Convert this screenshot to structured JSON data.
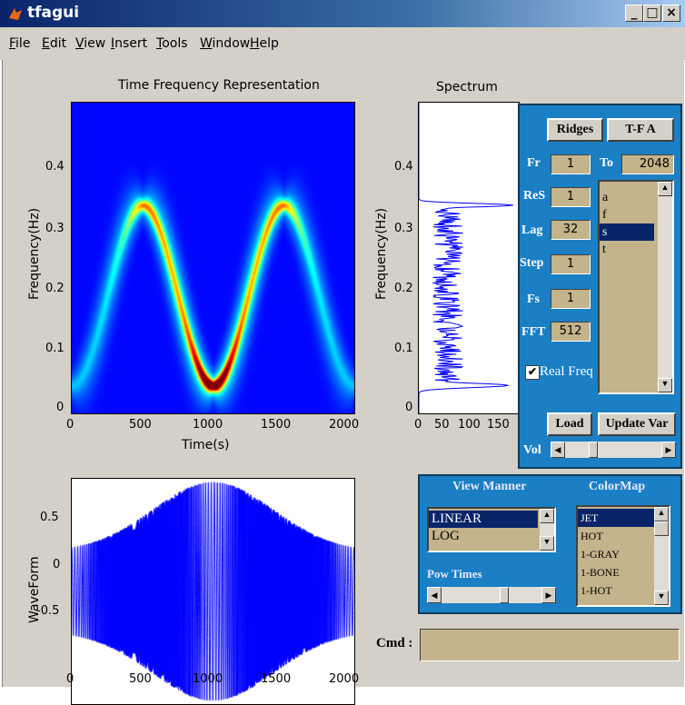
{
  "window": {
    "title": "tfagui",
    "min": "_",
    "max": "□",
    "close": "×"
  },
  "menu": [
    "File",
    "Edit",
    "View",
    "Insert",
    "Tools",
    "Window",
    "Help"
  ],
  "tfr": {
    "title": "Time Frequency Representation",
    "xlabel": "Time(s)",
    "ylabel": "Frequency(Hz)",
    "xticks": [
      "0",
      "500",
      "1000",
      "1500",
      "2000"
    ],
    "yticks": [
      "0",
      "0.1",
      "0.2",
      "0.3",
      "0.4"
    ]
  },
  "spectrum": {
    "title": "Spectrum",
    "ylabel": "Frequency(Hz)",
    "xticks": [
      "0",
      "50",
      "100",
      "150"
    ],
    "yticks": [
      "0",
      "0.1",
      "0.2",
      "0.3",
      "0.4"
    ]
  },
  "waveform": {
    "ylabel": "WaveForm",
    "xticks": [
      "0",
      "500",
      "1000",
      "1500",
      "2000"
    ],
    "yticks": [
      "0.5",
      "0",
      "-0.5"
    ]
  },
  "controls": {
    "ridges": "Ridges",
    "tfa": "T-F A",
    "fr_label": "Fr",
    "fr": "1",
    "to_label": "To",
    "to": "2048",
    "res_label": "ReS",
    "res": "1",
    "lag_label": "Lag",
    "lag": "32",
    "step_label": "Step",
    "step": "1",
    "fs_label": "Fs",
    "fs": "1",
    "fft_label": "FFT",
    "fft": "512",
    "vars": [
      "a",
      "f",
      "s",
      "t"
    ],
    "selected_var": "s",
    "realfreq": "Real Freq",
    "load": "Load",
    "update": "Update Var",
    "vol": "Vol"
  },
  "view": {
    "header": "View Manner",
    "options": [
      "LINEAR",
      "LOG"
    ],
    "selected": "LINEAR",
    "pow": "Pow Times",
    "cmap_header": "ColorMap",
    "cmaps": [
      "JET",
      "HOT",
      "1-GRAY",
      "1-BONE",
      "1-HOT"
    ],
    "cmap_selected": "JET"
  },
  "cmd": {
    "label": "Cmd :",
    "value": ""
  },
  "chart_data": [
    {
      "type": "heatmap",
      "title": "Time Frequency Representation",
      "xlabel": "Time(s)",
      "ylabel": "Frequency(Hz)",
      "xlim": [
        0,
        2048
      ],
      "ylim": [
        0,
        0.5
      ],
      "ridge": {
        "center": 0.19,
        "amplitude": 0.145,
        "period": 1024,
        "phase_t": 0
      },
      "colormap": "jet"
    },
    {
      "type": "line",
      "title": "Spectrum",
      "ylabel": "Frequency(Hz)",
      "xlim": [
        0,
        180
      ],
      "ylim": [
        0,
        0.5
      ],
      "band": [
        0.045,
        0.335
      ],
      "peak": 170
    },
    {
      "type": "line",
      "ylabel": "WaveForm",
      "xlim": [
        0,
        2048
      ],
      "ylim": [
        -1,
        1
      ],
      "envelope_peak_t": 1024
    }
  ]
}
